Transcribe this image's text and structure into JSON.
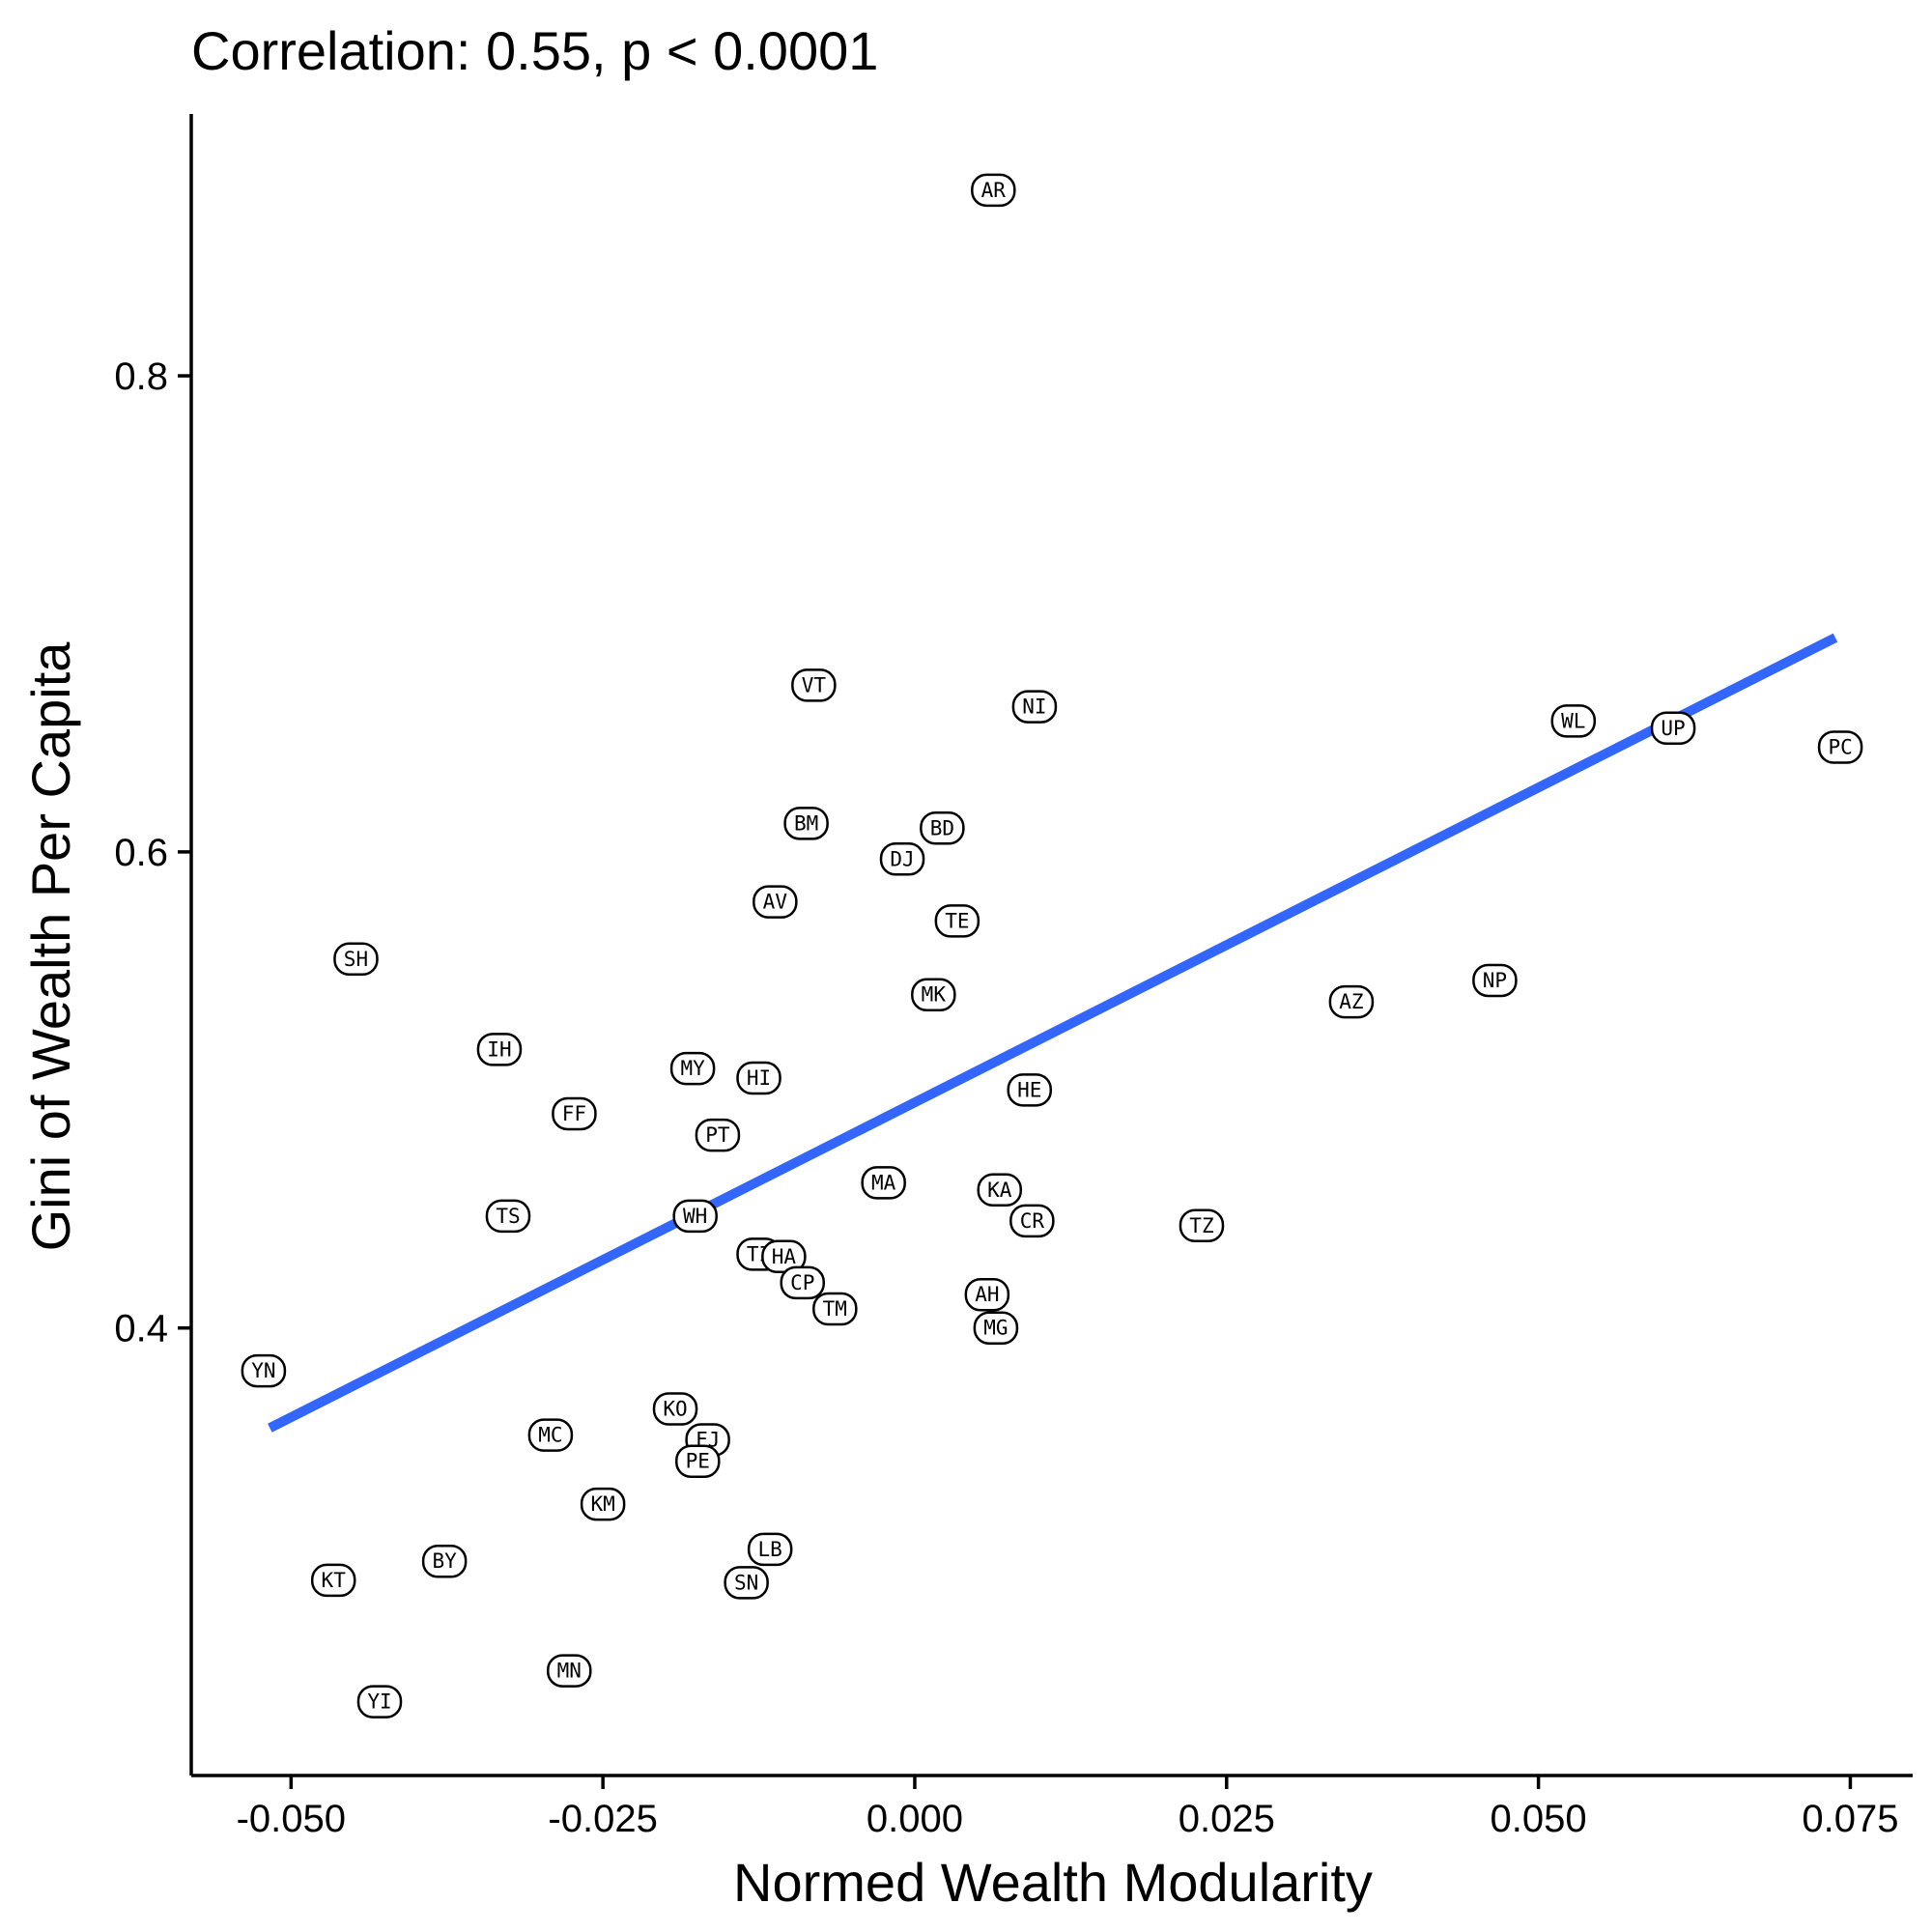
{
  "chart_data": {
    "type": "scatter",
    "title": "Correlation: 0.55, p < 0.0001",
    "xlabel": "Normed Wealth Modularity",
    "ylabel": "Gini of Wealth Per Capita",
    "xlim": [
      -0.058,
      0.08
    ],
    "ylim": [
      0.212,
      0.91
    ],
    "x_ticks": [
      -0.05,
      -0.025,
      0.0,
      0.025,
      0.05,
      0.075
    ],
    "x_tick_labels": [
      "-0.050",
      "-0.025",
      "0.000",
      "0.025",
      "0.050",
      "0.075"
    ],
    "y_ticks": [
      0.4,
      0.6,
      0.8
    ],
    "y_tick_labels": [
      "0.4",
      "0.6",
      "0.8"
    ],
    "grid": false,
    "fit_line": {
      "color": "#3366ff",
      "x": [
        -0.0517,
        0.0738
      ],
      "y": [
        0.358,
        0.69
      ]
    },
    "points": [
      {
        "label": "AR",
        "x": 0.0063,
        "y": 0.878
      },
      {
        "label": "VT",
        "x": -0.0081,
        "y": 0.67
      },
      {
        "label": "NI",
        "x": 0.0096,
        "y": 0.661
      },
      {
        "label": "WL",
        "x": 0.0528,
        "y": 0.655
      },
      {
        "label": "UP",
        "x": 0.0608,
        "y": 0.652
      },
      {
        "label": "PC",
        "x": 0.0742,
        "y": 0.644
      },
      {
        "label": "BM",
        "x": -0.0087,
        "y": 0.612
      },
      {
        "label": "BD",
        "x": 0.0022,
        "y": 0.61
      },
      {
        "label": "DJ",
        "x": -0.001,
        "y": 0.597
      },
      {
        "label": "AV",
        "x": -0.0112,
        "y": 0.579
      },
      {
        "label": "TE",
        "x": 0.0034,
        "y": 0.571
      },
      {
        "label": "SH",
        "x": -0.0448,
        "y": 0.555
      },
      {
        "label": "NP",
        "x": 0.0465,
        "y": 0.546
      },
      {
        "label": "MK",
        "x": 0.0015,
        "y": 0.54
      },
      {
        "label": "AZ",
        "x": 0.035,
        "y": 0.537
      },
      {
        "label": "IH",
        "x": -0.0333,
        "y": 0.517
      },
      {
        "label": "MY",
        "x": -0.0178,
        "y": 0.509
      },
      {
        "label": "HI",
        "x": -0.0125,
        "y": 0.505
      },
      {
        "label": "HE",
        "x": 0.0092,
        "y": 0.5
      },
      {
        "label": "FF",
        "x": -0.0273,
        "y": 0.49
      },
      {
        "label": "PT",
        "x": -0.0158,
        "y": 0.481
      },
      {
        "label": "MA",
        "x": -0.0025,
        "y": 0.461
      },
      {
        "label": "KA",
        "x": 0.0068,
        "y": 0.458
      },
      {
        "label": "TS",
        "x": -0.0326,
        "y": 0.447
      },
      {
        "label": "WH",
        "x": -0.0176,
        "y": 0.447
      },
      {
        "label": "CR",
        "x": 0.0094,
        "y": 0.445
      },
      {
        "label": "TZ",
        "x": 0.023,
        "y": 0.443
      },
      {
        "label": "TI",
        "x": -0.0125,
        "y": 0.431
      },
      {
        "label": "HA",
        "x": -0.0105,
        "y": 0.43
      },
      {
        "label": "CP",
        "x": -0.009,
        "y": 0.419
      },
      {
        "label": "AH",
        "x": 0.0058,
        "y": 0.414
      },
      {
        "label": "TM",
        "x": -0.0064,
        "y": 0.408
      },
      {
        "label": "MG",
        "x": 0.0065,
        "y": 0.4
      },
      {
        "label": "YN",
        "x": -0.0522,
        "y": 0.382
      },
      {
        "label": "KO",
        "x": -0.0192,
        "y": 0.366
      },
      {
        "label": "MC",
        "x": -0.0292,
        "y": 0.355
      },
      {
        "label": "FJ",
        "x": -0.0166,
        "y": 0.353
      },
      {
        "label": "PE",
        "x": -0.0174,
        "y": 0.344
      },
      {
        "label": "KM",
        "x": -0.025,
        "y": 0.326
      },
      {
        "label": "LB",
        "x": -0.0116,
        "y": 0.307
      },
      {
        "label": "BY",
        "x": -0.0377,
        "y": 0.302
      },
      {
        "label": "KT",
        "x": -0.0466,
        "y": 0.294
      },
      {
        "label": "SN",
        "x": -0.0135,
        "y": 0.293
      },
      {
        "label": "MN",
        "x": -0.0277,
        "y": 0.256
      },
      {
        "label": "YI",
        "x": -0.0429,
        "y": 0.243
      }
    ]
  }
}
